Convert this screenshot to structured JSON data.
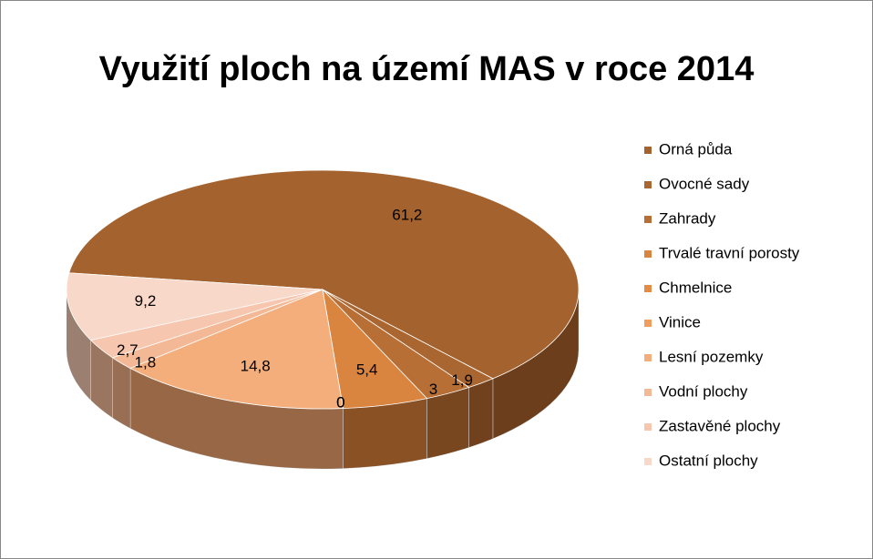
{
  "chart_data": {
    "type": "pie",
    "title": "Využití ploch na území MAS v roce 2014",
    "categories": [
      "Orná půda",
      "Ovocné sady",
      "Zahrady",
      "Trvalé travní porosty",
      "Chmelnice",
      "Vinice",
      "Lesní pozemky",
      "Vodní plochy",
      "Zastavěné plochy",
      "Ostatní plochy"
    ],
    "values": [
      61.2,
      1.9,
      3,
      5.4,
      0,
      0,
      14.8,
      1.8,
      2.7,
      9.2
    ],
    "value_labels": [
      "61,2",
      "1,9",
      "3",
      "5,4",
      "0",
      "0",
      "14,8",
      "1,8",
      "2,7",
      "9,2"
    ],
    "colors": [
      "#a3622e",
      "#aa6630",
      "#b86f35",
      "#d9843f",
      "#e48c45",
      "#ee9e60",
      "#f3ae7c",
      "#f3b996",
      "#f6c6ae",
      "#f8d8c8"
    ],
    "legend": "right"
  }
}
